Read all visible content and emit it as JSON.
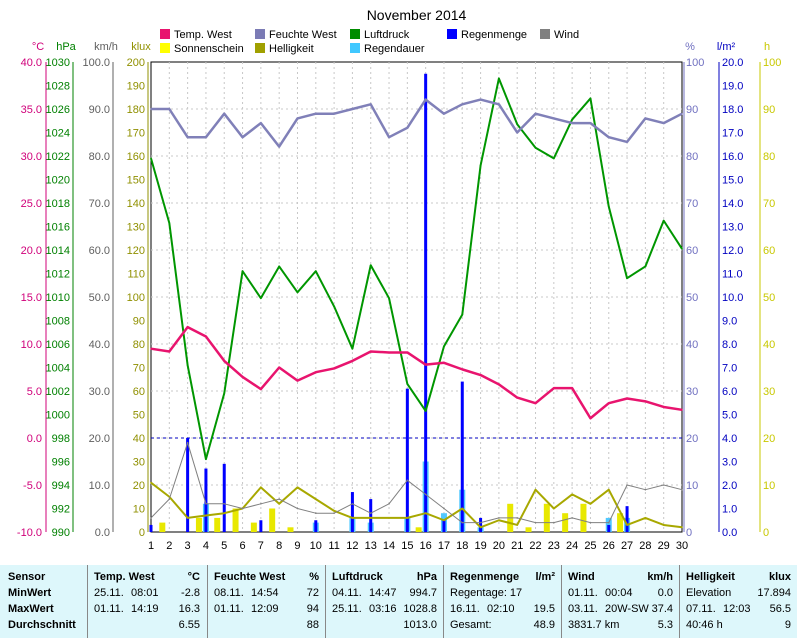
{
  "chart_data": {
    "type": "line",
    "title": "November 2014",
    "days": [
      1,
      2,
      3,
      4,
      5,
      6,
      7,
      8,
      9,
      10,
      11,
      12,
      13,
      14,
      15,
      16,
      17,
      18,
      19,
      20,
      21,
      22,
      23,
      24,
      25,
      26,
      27,
      28,
      29,
      30
    ],
    "axes": [
      {
        "unit": "°C",
        "color": "#d0007a",
        "min": -10,
        "max": 40,
        "ticks": [
          "40.0",
          "35.0",
          "30.0",
          "25.0",
          "20.0",
          "15.0",
          "10.0",
          "5.0",
          "0.0",
          "-5.0",
          "-10.0"
        ]
      },
      {
        "unit": "hPa",
        "color": "#008000",
        "min": 990,
        "max": 1030,
        "ticks": [
          "1030",
          "1028",
          "1026",
          "1024",
          "1022",
          "1020",
          "1018",
          "1016",
          "1014",
          "1012",
          "1010",
          "1008",
          "1006",
          "1004",
          "1002",
          "1000",
          "998",
          "996",
          "994",
          "992",
          "990"
        ]
      },
      {
        "unit": "km/h",
        "color": "#606060",
        "min": 0,
        "max": 100,
        "ticks": [
          "100.0",
          "90.0",
          "80.0",
          "70.0",
          "60.0",
          "50.0",
          "40.0",
          "30.0",
          "20.0",
          "10.0",
          "0.0"
        ]
      },
      {
        "unit": "klux",
        "color": "#909000",
        "min": 0,
        "max": 200,
        "ticks": [
          "200",
          "190",
          "180",
          "170",
          "160",
          "150",
          "140",
          "130",
          "120",
          "110",
          "100",
          "90",
          "80",
          "70",
          "60",
          "50",
          "40",
          "30",
          "20",
          "10",
          "0"
        ]
      },
      {
        "unit": "%",
        "color": "#7070c0",
        "min": 0,
        "max": 100,
        "ticks": [
          "100",
          "90",
          "80",
          "70",
          "60",
          "50",
          "40",
          "30",
          "20",
          "10",
          "0"
        ]
      },
      {
        "unit": "l/m²",
        "color": "#0000c0",
        "min": 0,
        "max": 20,
        "ticks": [
          "20.0",
          "19.0",
          "18.0",
          "17.0",
          "16.0",
          "15.0",
          "14.0",
          "13.0",
          "12.0",
          "11.0",
          "10.0",
          "9.0",
          "8.0",
          "7.0",
          "6.0",
          "5.0",
          "4.0",
          "3.0",
          "2.0",
          "1.0",
          "0.0"
        ]
      },
      {
        "unit": "h",
        "color": "#c8c800",
        "min": 0,
        "max": 100,
        "ticks": [
          "100",
          "90",
          "80",
          "70",
          "60",
          "50",
          "40",
          "30",
          "20",
          "10",
          "0"
        ]
      }
    ],
    "legend": [
      {
        "name": "Temp. West",
        "color": "#e8146e"
      },
      {
        "name": "Feuchte West",
        "color": "#7b7bb5"
      },
      {
        "name": "Luftdruck",
        "color": "#008c00"
      },
      {
        "name": "Regenmenge",
        "color": "#0000ff"
      },
      {
        "name": "Wind",
        "color": "#808080"
      },
      {
        "name": "Sonnenschein",
        "color": "#ffff00"
      },
      {
        "name": "Helligkeit",
        "color": "#a0a000"
      },
      {
        "name": "Regendauer",
        "color": "#40c8ff"
      }
    ],
    "series": [
      {
        "name": "Temp. West",
        "axis": 0,
        "values": [
          9.5,
          9.2,
          11.8,
          10.8,
          8.2,
          6.5,
          5.2,
          7.5,
          6.1,
          7.0,
          7.4,
          8.2,
          9.2,
          9.1,
          9.1,
          7.8,
          8.0,
          7.3,
          6.7,
          5.7,
          4.3,
          3.7,
          5.3,
          5.3,
          2.1,
          3.7,
          4.2,
          3.9,
          3.3,
          3.0
        ]
      },
      {
        "name": "Feuchte West",
        "axis": 4,
        "values": [
          90,
          90,
          84,
          84,
          89,
          84,
          87,
          82,
          88,
          89,
          89,
          90,
          91,
          84,
          86,
          92,
          89,
          91,
          92,
          91,
          85,
          89,
          88,
          87,
          87,
          84,
          83,
          88,
          87,
          89
        ]
      },
      {
        "name": "Luftdruck",
        "axis": 1,
        "values": [
          1021.8,
          1016.3,
          1004.2,
          996.2,
          1001.8,
          1012.2,
          1009.9,
          1012.6,
          1010.4,
          1012.2,
          1009.2,
          1005.6,
          1012.7,
          1009.9,
          1002.6,
          1000.3,
          1005.8,
          1008.5,
          1021.2,
          1028.6,
          1024.7,
          1022.7,
          1021.8,
          1025.1,
          1026.9,
          1017.7,
          1011.6,
          1012.6,
          1016.5,
          1014.1
        ]
      },
      {
        "name": "Wind",
        "axis": 2,
        "values": [
          3,
          7,
          19,
          6,
          6,
          5,
          6,
          7,
          5,
          4,
          4,
          6,
          4,
          6,
          11,
          8,
          5,
          2,
          2,
          3,
          3,
          2,
          2,
          3,
          2,
          2,
          10,
          9,
          10,
          9
        ]
      },
      {
        "name": "Helligkeit",
        "axis": 3,
        "values": [
          21,
          15,
          6,
          7,
          8,
          10,
          19,
          12,
          19,
          14,
          9,
          6,
          6,
          6,
          6,
          8,
          5,
          10,
          2,
          5,
          3,
          18,
          10,
          16,
          12,
          18,
          3,
          6,
          3,
          2
        ]
      }
    ],
    "bars": [
      {
        "name": "Regenmenge",
        "axis": 5,
        "values": [
          0.3,
          0,
          4.0,
          2.7,
          2.9,
          0,
          0.5,
          0,
          0,
          0.5,
          0,
          1.7,
          1.4,
          0,
          6.1,
          19.5,
          0.5,
          6.4,
          0.6,
          0,
          0,
          0,
          0,
          0,
          0,
          0.3,
          1.1,
          0,
          0,
          0
        ]
      },
      {
        "name": "Regendauer",
        "axis": 6,
        "values": [
          0,
          0,
          0,
          6,
          0,
          0,
          0,
          0,
          0,
          2,
          0,
          3,
          2,
          0,
          3,
          15,
          4,
          9,
          1,
          0,
          0,
          0,
          0,
          0,
          0,
          3,
          3,
          0,
          0,
          0
        ]
      },
      {
        "name": "Sonnenschein",
        "axis": 6,
        "values": [
          0,
          2,
          0,
          3,
          3,
          5,
          2,
          5,
          1,
          0,
          0,
          0,
          0,
          0,
          0,
          1,
          0,
          0,
          0,
          0,
          6,
          1,
          6,
          4,
          6,
          0,
          4,
          0,
          0,
          0
        ]
      }
    ],
    "reference_line": {
      "axis": 5,
      "value": 4.0
    }
  },
  "stats": {
    "row_labels": [
      "Sensor",
      "MinWert",
      "MaxWert",
      "Durchschnitt"
    ],
    "panels": [
      {
        "title": "Temp. West",
        "unit": "°C",
        "rows": [
          [
            "25.11.",
            "08:01",
            "-2.8"
          ],
          [
            "01.11.",
            "14:19",
            "16.3"
          ],
          [
            "",
            "",
            "6.55"
          ]
        ]
      },
      {
        "title": "Feuchte West",
        "unit": "%",
        "rows": [
          [
            "08.11.",
            "14:54",
            "72"
          ],
          [
            "01.11.",
            "12:09",
            "94"
          ],
          [
            "",
            "",
            "88"
          ]
        ]
      },
      {
        "title": "Luftdruck",
        "unit": "hPa",
        "rows": [
          [
            "04.11.",
            "14:47",
            "994.7"
          ],
          [
            "25.11.",
            "03:16",
            "1028.8"
          ],
          [
            "",
            "",
            "1013.0"
          ]
        ]
      },
      {
        "title": "Regenmenge",
        "unit": "l/m²",
        "rows": [
          [
            "Regentage: 17",
            "",
            ""
          ],
          [
            "16.11.",
            "02:10",
            "19.5"
          ],
          [
            "Gesamt:",
            "",
            "48.9"
          ]
        ]
      },
      {
        "title": "Wind",
        "unit": "km/h",
        "rows": [
          [
            "01.11.",
            "00:04",
            "0.0"
          ],
          [
            "03.11.",
            "20W-SW",
            "37.4"
          ],
          [
            "3831.7 km",
            "",
            "5.3"
          ]
        ]
      },
      {
        "title": "Helligkeit",
        "unit": "klux",
        "rows": [
          [
            "Elevation",
            "",
            "17.894"
          ],
          [
            "07.11.",
            "12:03",
            "56.5"
          ],
          [
            "40:46 h",
            "",
            "9"
          ]
        ]
      }
    ]
  }
}
